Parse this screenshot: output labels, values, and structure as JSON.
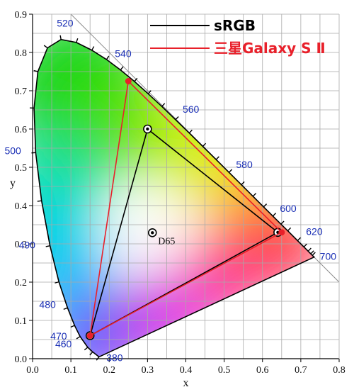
{
  "chart_data": {
    "type": "scatter",
    "title": "",
    "xlabel": "x",
    "ylabel": "y",
    "xlim": [
      0.0,
      0.8
    ],
    "ylim": [
      0.0,
      0.9
    ],
    "grid": true,
    "legend_placement": "top-right",
    "x_ticks": [
      "0.0",
      "0.1",
      "0.2",
      "0.3",
      "0.4",
      "0.5",
      "0.6",
      "0.7",
      "0.8"
    ],
    "y_ticks": [
      "0.0",
      "0.1",
      "0.2",
      "0.3",
      "0.4",
      "0.5",
      "0.6",
      "0.7",
      "0.8",
      "0.9"
    ],
    "spectral_locus": [
      {
        "nm": "380",
        "x": 0.1741,
        "y": 0.005,
        "label": true
      },
      {
        "nm": "430",
        "x": 0.1733,
        "y": 0.0048
      },
      {
        "nm": "450",
        "x": 0.1566,
        "y": 0.0177
      },
      {
        "nm": "460",
        "x": 0.144,
        "y": 0.0297,
        "label": true
      },
      {
        "nm": "470",
        "x": 0.1241,
        "y": 0.0578,
        "label": true
      },
      {
        "nm": "475",
        "x": 0.1096,
        "y": 0.0868
      },
      {
        "nm": "480",
        "x": 0.0913,
        "y": 0.1327,
        "label": true
      },
      {
        "nm": "485",
        "x": 0.0687,
        "y": 0.2007
      },
      {
        "nm": "490",
        "x": 0.0454,
        "y": 0.295,
        "label": true
      },
      {
        "nm": "495",
        "x": 0.0235,
        "y": 0.4127
      },
      {
        "nm": "500",
        "x": 0.0082,
        "y": 0.5384,
        "label": true
      },
      {
        "nm": "505",
        "x": 0.0039,
        "y": 0.6548
      },
      {
        "nm": "510",
        "x": 0.0139,
        "y": 0.7502
      },
      {
        "nm": "515",
        "x": 0.0389,
        "y": 0.812
      },
      {
        "nm": "520",
        "x": 0.0743,
        "y": 0.8338,
        "label": true
      },
      {
        "nm": "525",
        "x": 0.1142,
        "y": 0.8262
      },
      {
        "nm": "530",
        "x": 0.1547,
        "y": 0.8059
      },
      {
        "nm": "535",
        "x": 0.1929,
        "y": 0.7816
      },
      {
        "nm": "540",
        "x": 0.2296,
        "y": 0.7543,
        "label": true
      },
      {
        "nm": "545",
        "x": 0.2658,
        "y": 0.7243
      },
      {
        "nm": "550",
        "x": 0.3016,
        "y": 0.6923
      },
      {
        "nm": "555",
        "x": 0.3373,
        "y": 0.6589
      },
      {
        "nm": "560",
        "x": 0.3731,
        "y": 0.6245,
        "label": true
      },
      {
        "nm": "565",
        "x": 0.4087,
        "y": 0.5896
      },
      {
        "nm": "570",
        "x": 0.4441,
        "y": 0.5547
      },
      {
        "nm": "575",
        "x": 0.4788,
        "y": 0.5202
      },
      {
        "nm": "580",
        "x": 0.5125,
        "y": 0.4866,
        "label": true
      },
      {
        "nm": "585",
        "x": 0.5448,
        "y": 0.4544
      },
      {
        "nm": "590",
        "x": 0.5752,
        "y": 0.4242
      },
      {
        "nm": "595",
        "x": 0.6029,
        "y": 0.3965
      },
      {
        "nm": "600",
        "x": 0.627,
        "y": 0.3725,
        "label": true
      },
      {
        "nm": "605",
        "x": 0.6482,
        "y": 0.3514
      },
      {
        "nm": "610",
        "x": 0.6658,
        "y": 0.334
      },
      {
        "nm": "620",
        "x": 0.6915,
        "y": 0.3083,
        "label": true
      },
      {
        "nm": "630",
        "x": 0.7079,
        "y": 0.292
      },
      {
        "nm": "640",
        "x": 0.719,
        "y": 0.2809
      },
      {
        "nm": "650",
        "x": 0.726,
        "y": 0.274
      },
      {
        "nm": "660",
        "x": 0.73,
        "y": 0.27
      },
      {
        "nm": "700",
        "x": 0.7347,
        "y": 0.2653,
        "label": true
      }
    ],
    "series": [
      {
        "name": "sRGB",
        "color": "#000000",
        "points": [
          {
            "x": 0.64,
            "y": 0.33
          },
          {
            "x": 0.3,
            "y": 0.6
          },
          {
            "x": 0.15,
            "y": 0.06
          }
        ]
      },
      {
        "name": "三星Galaxy S Ⅱ",
        "color": "#e8202a",
        "points": [
          {
            "x": 0.65,
            "y": 0.33
          },
          {
            "x": 0.25,
            "y": 0.725
          },
          {
            "x": 0.15,
            "y": 0.06
          }
        ]
      }
    ],
    "white_point": {
      "name": "D65",
      "x": 0.3127,
      "y": 0.329
    }
  }
}
